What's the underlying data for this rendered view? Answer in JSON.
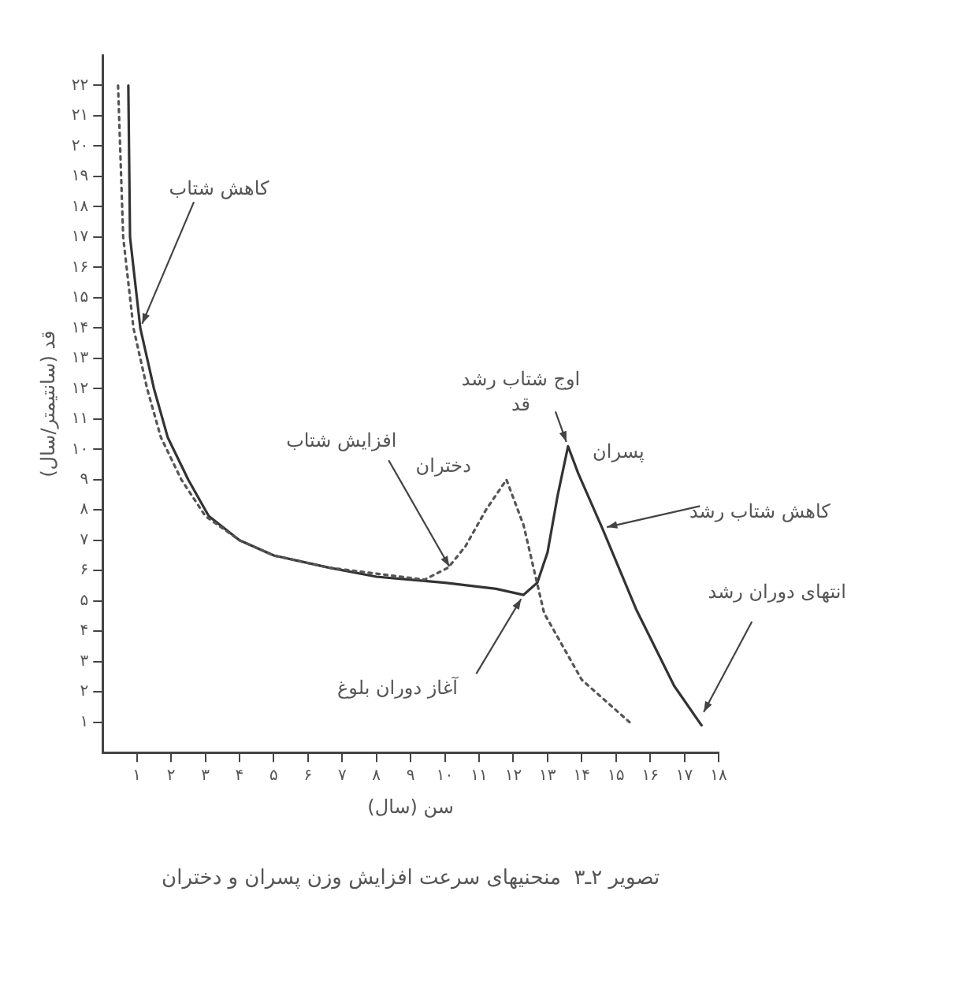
{
  "chart_data": {
    "type": "line",
    "xlabel": "سن (سال)",
    "ylabel": "قد (سانتیمتر/سال)",
    "xlim": [
      0,
      18
    ],
    "ylim": [
      0,
      23
    ],
    "xticks": [
      {
        "value": 1,
        "label": "۱"
      },
      {
        "value": 2,
        "label": "۲"
      },
      {
        "value": 3,
        "label": "۳"
      },
      {
        "value": 4,
        "label": "۴"
      },
      {
        "value": 5,
        "label": "۵"
      },
      {
        "value": 6,
        "label": "۶"
      },
      {
        "value": 7,
        "label": "۷"
      },
      {
        "value": 8,
        "label": "۸"
      },
      {
        "value": 9,
        "label": "۹"
      },
      {
        "value": 10,
        "label": "۱۰"
      },
      {
        "value": 11,
        "label": "۱۱"
      },
      {
        "value": 12,
        "label": "۱۲"
      },
      {
        "value": 13,
        "label": "۱۳"
      },
      {
        "value": 14,
        "label": "۱۴"
      },
      {
        "value": 15,
        "label": "۱۵"
      },
      {
        "value": 16,
        "label": "۱۶"
      },
      {
        "value": 17,
        "label": "۱۷"
      },
      {
        "value": 18,
        "label": "۱۸"
      }
    ],
    "yticks": [
      {
        "value": 1,
        "label": "۱"
      },
      {
        "value": 2,
        "label": "۲"
      },
      {
        "value": 3,
        "label": "۳"
      },
      {
        "value": 4,
        "label": "۴"
      },
      {
        "value": 5,
        "label": "۵"
      },
      {
        "value": 6,
        "label": "۶"
      },
      {
        "value": 7,
        "label": "۷"
      },
      {
        "value": 8,
        "label": "۸"
      },
      {
        "value": 9,
        "label": "۹"
      },
      {
        "value": 10,
        "label": "۱۰"
      },
      {
        "value": 11,
        "label": "۱۱"
      },
      {
        "value": 12,
        "label": "۱۲"
      },
      {
        "value": 13,
        "label": "۱۳"
      },
      {
        "value": 14,
        "label": "۱۴"
      },
      {
        "value": 15,
        "label": "۱۵"
      },
      {
        "value": 16,
        "label": "۱۶"
      },
      {
        "value": 17,
        "label": "۱۷"
      },
      {
        "value": 18,
        "label": "۱۸"
      },
      {
        "value": 19,
        "label": "۱۹"
      },
      {
        "value": 20,
        "label": "۲۰"
      },
      {
        "value": 21,
        "label": "۲۱"
      },
      {
        "value": 22,
        "label": "۲۲"
      }
    ],
    "grid": false,
    "legend": false,
    "marker": "none",
    "series": [
      {
        "name": "دختران",
        "color": "#555555",
        "line_style": "dotted",
        "x": [
          0.45,
          0.6,
          0.9,
          1.3,
          1.7,
          2.3,
          3,
          4,
          5,
          6.6,
          8,
          9.4,
          10.1,
          10.6,
          11.2,
          11.8,
          12.3,
          12.9,
          14,
          15.5
        ],
        "values": [
          22,
          17,
          14,
          12,
          10.4,
          9,
          7.8,
          7,
          6.5,
          6.1,
          5.9,
          5.7,
          6.1,
          6.8,
          8,
          9,
          7.5,
          4.6,
          2.4,
          0.9
        ]
      },
      {
        "name": "پسران",
        "color": "#333333",
        "line_style": "solid",
        "x": [
          0.75,
          0.8,
          1.1,
          1.5,
          1.9,
          2.5,
          3.1,
          4,
          5,
          6.6,
          8,
          10,
          11.5,
          12.3,
          12.7,
          13,
          13.3,
          13.6,
          13.9,
          14.6,
          15.6,
          16.7,
          17.5
        ],
        "values": [
          22,
          17,
          14,
          12,
          10.4,
          9,
          7.8,
          7,
          6.5,
          6.1,
          5.8,
          5.6,
          5.4,
          5.2,
          5.6,
          6.6,
          8.5,
          10.1,
          9.2,
          7.4,
          4.7,
          2.2,
          0.9
        ]
      }
    ],
    "annotations": [
      {
        "text": "کاهش شتاب",
        "x": 1.1,
        "y": 14
      },
      {
        "text": "اوج شتاب رشد قد",
        "x": 13.6,
        "y": 10.1
      },
      {
        "text": "افزایش شتاب",
        "x": 10.2,
        "y": 6.0
      },
      {
        "text": "کاهش شتاب رشد",
        "x": 14.6,
        "y": 7.4
      },
      {
        "text": "انتهای دوران رشد",
        "x": 17.5,
        "y": 1.2
      },
      {
        "text": "آغاز دوران بلوغ",
        "x": 12.3,
        "y": 5.2
      },
      "تصویر ۲ـ۳  منحنیهای سرعت افزایش وزن پسران و دختران"
    ]
  }
}
